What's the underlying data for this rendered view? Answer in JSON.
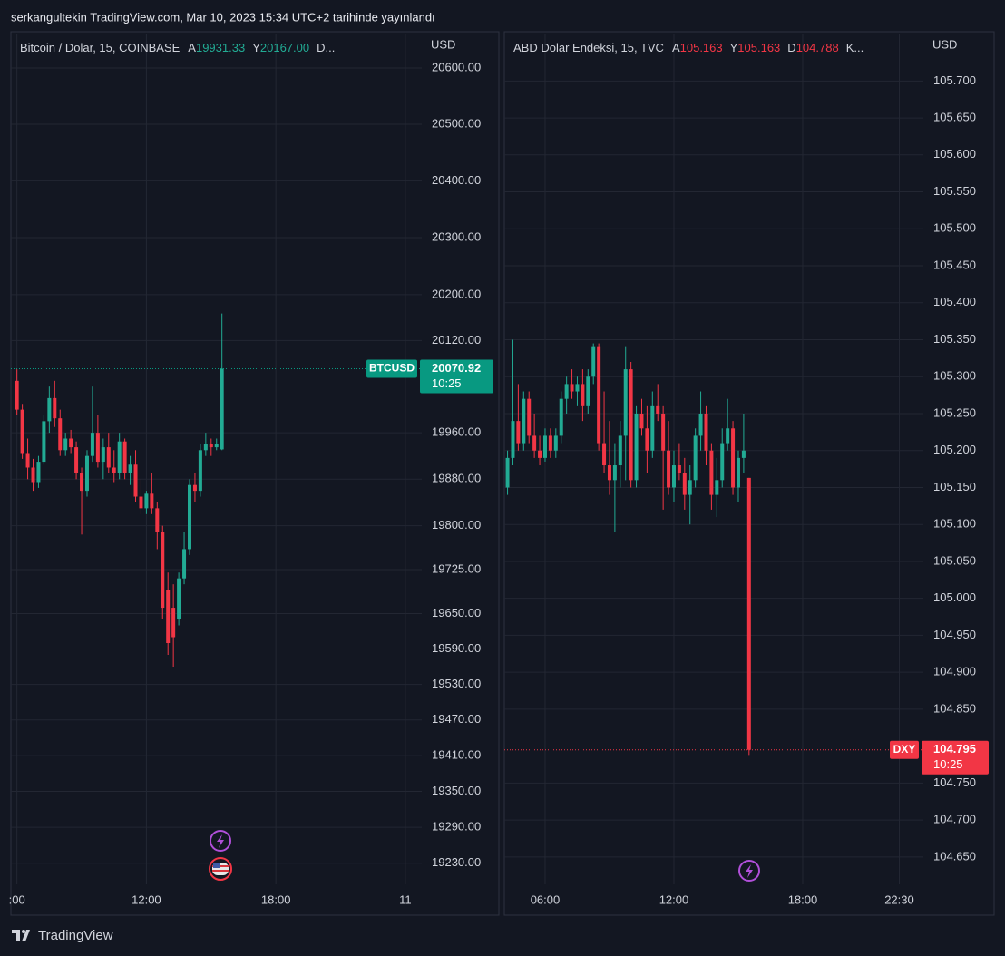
{
  "header": {
    "title": "serkangultekin TradingView.com, Mar 10, 2023 15:34 UTC+2 tarihinde yayınlandı"
  },
  "footer": {
    "brand": "TradingView"
  },
  "chart_data": [
    {
      "type": "candlestick",
      "title": "Bitcoin / Dolar, 15, COINBASE",
      "ohlc_legend": [
        {
          "key": "A",
          "value": "19931.33"
        },
        {
          "key": "Y",
          "value": "20167.00"
        }
      ],
      "legend_more": "D...",
      "legend_color": "#22ab94",
      "y_unit": "USD",
      "up_color": "#22ab94",
      "down_color": "#f23645",
      "log_scale": true,
      "grid": true,
      "x": [
        6,
        6.25,
        6.5,
        6.75,
        7,
        7.25,
        7.5,
        7.75,
        8,
        8.25,
        8.5,
        8.75,
        9,
        9.25,
        9.5,
        9.75,
        10,
        10.25,
        10.5,
        10.75,
        11,
        11.25,
        11.5,
        11.75,
        12,
        12.25,
        12.5,
        12.75,
        13,
        13.25,
        13.5,
        13.75,
        14,
        14.25,
        14.5,
        14.75,
        15,
        15.25,
        15.5
      ],
      "open": [
        20050,
        20000,
        19925,
        19900,
        19875,
        19910,
        19980,
        20020,
        19985,
        19930,
        19950,
        19935,
        19890,
        19860,
        19920,
        19960,
        19910,
        19935,
        19900,
        19890,
        19945,
        19890,
        19905,
        19850,
        19830,
        19855,
        19830,
        19790,
        19690,
        19660,
        19640,
        19710,
        19760,
        19870,
        19860,
        19930,
        19940,
        19935,
        19931.33
      ],
      "high": [
        20070,
        20010,
        19950,
        19915,
        19920,
        19990,
        20040,
        20050,
        20000,
        19960,
        19965,
        19945,
        19900,
        19930,
        20040,
        19990,
        19950,
        19960,
        19930,
        19960,
        19950,
        19920,
        19930,
        19880,
        19860,
        19890,
        19840,
        19800,
        19720,
        19700,
        19720,
        19790,
        19880,
        19890,
        19940,
        19960,
        19950,
        19950,
        20167
      ],
      "low": [
        19990,
        19915,
        19880,
        19860,
        19865,
        19905,
        19960,
        19970,
        19920,
        19920,
        19925,
        19880,
        19785,
        19850,
        19910,
        19900,
        19880,
        19890,
        19875,
        19880,
        19880,
        19870,
        19840,
        19820,
        19820,
        19820,
        19760,
        19640,
        19580,
        19560,
        19630,
        19700,
        19750,
        19840,
        19850,
        19920,
        19920,
        19930,
        19930
      ],
      "close": [
        20000,
        19925,
        19900,
        19875,
        19910,
        19980,
        20020,
        19985,
        19930,
        19950,
        19935,
        19890,
        19860,
        19920,
        19960,
        19910,
        19935,
        19900,
        19890,
        19945,
        19890,
        19905,
        19850,
        19830,
        19855,
        19830,
        19790,
        19660,
        19600,
        19610,
        19710,
        19760,
        19870,
        19860,
        19930,
        19940,
        19935,
        19940,
        20070.92
      ],
      "xlim": [
        5.72,
        24.76
      ],
      "xticks": [
        {
          "value": 6,
          "label": ":00"
        },
        {
          "value": 12,
          "label": "12:00"
        },
        {
          "value": 18,
          "label": "18:00"
        },
        {
          "value": 24,
          "label": "11"
        }
      ],
      "ylim": [
        19195,
        20660
      ],
      "yticks": [
        {
          "value": 20600,
          "label": "20600.00"
        },
        {
          "value": 20500,
          "label": "20500.00"
        },
        {
          "value": 20400,
          "label": "20400.00"
        },
        {
          "value": 20300,
          "label": "20300.00"
        },
        {
          "value": 20200,
          "label": "20200.00"
        },
        {
          "value": 20120,
          "label": "20120.00"
        },
        {
          "value": 19960,
          "label": "19960.00"
        },
        {
          "value": 19880,
          "label": "19880.00"
        },
        {
          "value": 19800,
          "label": "19800.00"
        },
        {
          "value": 19725,
          "label": "19725.00"
        },
        {
          "value": 19650,
          "label": "19650.00"
        },
        {
          "value": 19590,
          "label": "19590.00"
        },
        {
          "value": 19530,
          "label": "19530.00"
        },
        {
          "value": 19470,
          "label": "19470.00"
        },
        {
          "value": 19410,
          "label": "19410.00"
        },
        {
          "value": 19350,
          "label": "19350.00"
        },
        {
          "value": 19290,
          "label": "19290.00"
        },
        {
          "value": 19230,
          "label": "19230.00"
        }
      ],
      "last_price": {
        "symbol": "BTCUSD",
        "value": 20070.92,
        "countdown": "10:25",
        "color": "#089981"
      }
    },
    {
      "type": "candlestick",
      "title": "ABD Dolar Endeksi, 15, TVC",
      "ohlc_legend": [
        {
          "key": "A",
          "value": "105.163"
        },
        {
          "key": "Y",
          "value": "105.163"
        },
        {
          "key": "D",
          "value": "104.788"
        }
      ],
      "legend_more": "K...",
      "legend_color": "#f23645",
      "y_unit": "USD",
      "up_color": "#22ab94",
      "down_color": "#f23645",
      "log_scale": false,
      "grid": true,
      "x": [
        4.25,
        4.5,
        4.75,
        5,
        5.25,
        5.5,
        5.75,
        6,
        6.25,
        6.5,
        6.75,
        7,
        7.25,
        7.5,
        7.75,
        8,
        8.25,
        8.5,
        8.75,
        9,
        9.25,
        9.5,
        9.75,
        10,
        10.25,
        10.5,
        10.75,
        11,
        11.25,
        11.5,
        11.75,
        12,
        12.25,
        12.5,
        12.75,
        13,
        13.25,
        13.5,
        13.75,
        14,
        14.25,
        14.5,
        14.75,
        15,
        15.25,
        15.5
      ],
      "open": [
        105.15,
        105.19,
        105.24,
        105.21,
        105.27,
        105.22,
        105.2,
        105.19,
        105.22,
        105.2,
        105.22,
        105.27,
        105.29,
        105.28,
        105.29,
        105.26,
        105.3,
        105.34,
        105.21,
        105.18,
        105.16,
        105.18,
        105.22,
        105.31,
        105.16,
        105.25,
        105.23,
        105.2,
        105.26,
        105.25,
        105.2,
        105.15,
        105.18,
        105.17,
        105.14,
        105.16,
        105.22,
        105.25,
        105.2,
        105.14,
        105.16,
        105.21,
        105.23,
        105.15,
        105.19,
        105.163
      ],
      "high": [
        105.2,
        105.35,
        105.29,
        105.28,
        105.28,
        105.25,
        105.22,
        105.23,
        105.23,
        105.23,
        105.28,
        105.3,
        105.31,
        105.3,
        105.31,
        105.31,
        105.345,
        105.345,
        105.28,
        105.24,
        105.21,
        105.24,
        105.34,
        105.32,
        105.26,
        105.27,
        105.26,
        105.28,
        105.29,
        105.26,
        105.24,
        105.2,
        105.21,
        105.19,
        105.18,
        105.23,
        105.28,
        105.26,
        105.21,
        105.19,
        105.23,
        105.27,
        105.24,
        105.2,
        105.25,
        105.163
      ],
      "low": [
        105.14,
        105.18,
        105.2,
        105.2,
        105.21,
        105.19,
        105.18,
        105.185,
        105.19,
        105.19,
        105.21,
        105.25,
        105.27,
        105.26,
        105.24,
        105.25,
        105.29,
        105.2,
        105.17,
        105.14,
        105.09,
        105.15,
        105.16,
        105.15,
        105.15,
        105.22,
        105.17,
        105.19,
        105.24,
        105.12,
        105.14,
        105.13,
        105.16,
        105.12,
        105.1,
        105.15,
        105.2,
        105.18,
        105.12,
        105.11,
        105.15,
        105.2,
        105.14,
        105.13,
        105.17,
        104.788
      ],
      "close": [
        105.19,
        105.24,
        105.21,
        105.27,
        105.22,
        105.2,
        105.19,
        105.22,
        105.2,
        105.22,
        105.27,
        105.29,
        105.28,
        105.29,
        105.26,
        105.3,
        105.34,
        105.21,
        105.18,
        105.16,
        105.18,
        105.22,
        105.31,
        105.16,
        105.25,
        105.23,
        105.2,
        105.26,
        105.25,
        105.2,
        105.15,
        105.18,
        105.17,
        105.14,
        105.16,
        105.22,
        105.25,
        105.2,
        105.14,
        105.16,
        105.21,
        105.23,
        105.15,
        105.19,
        105.2,
        104.795
      ],
      "xlim": [
        4.1,
        23.62
      ],
      "xticks": [
        {
          "value": 6,
          "label": "06:00"
        },
        {
          "value": 12,
          "label": "12:00"
        },
        {
          "value": 18,
          "label": "18:00"
        },
        {
          "value": 22.5,
          "label": "22:30"
        }
      ],
      "ylim": [
        104.613,
        105.763
      ],
      "yticks": [
        {
          "value": 105.7,
          "label": "105.700"
        },
        {
          "value": 105.65,
          "label": "105.650"
        },
        {
          "value": 105.6,
          "label": "105.600"
        },
        {
          "value": 105.55,
          "label": "105.550"
        },
        {
          "value": 105.5,
          "label": "105.500"
        },
        {
          "value": 105.45,
          "label": "105.450"
        },
        {
          "value": 105.4,
          "label": "105.400"
        },
        {
          "value": 105.35,
          "label": "105.350"
        },
        {
          "value": 105.3,
          "label": "105.300"
        },
        {
          "value": 105.25,
          "label": "105.250"
        },
        {
          "value": 105.2,
          "label": "105.200"
        },
        {
          "value": 105.15,
          "label": "105.150"
        },
        {
          "value": 105.1,
          "label": "105.100"
        },
        {
          "value": 105.05,
          "label": "105.050"
        },
        {
          "value": 105,
          "label": "105.000"
        },
        {
          "value": 104.95,
          "label": "104.950"
        },
        {
          "value": 104.9,
          "label": "104.900"
        },
        {
          "value": 104.85,
          "label": "104.850"
        },
        {
          "value": 104.75,
          "label": "104.750"
        },
        {
          "value": 104.7,
          "label": "104.700"
        },
        {
          "value": 104.65,
          "label": "104.650"
        }
      ],
      "last_price": {
        "symbol": "DXY",
        "value": 104.795,
        "countdown": "10:25",
        "color": "#f23645"
      }
    }
  ]
}
